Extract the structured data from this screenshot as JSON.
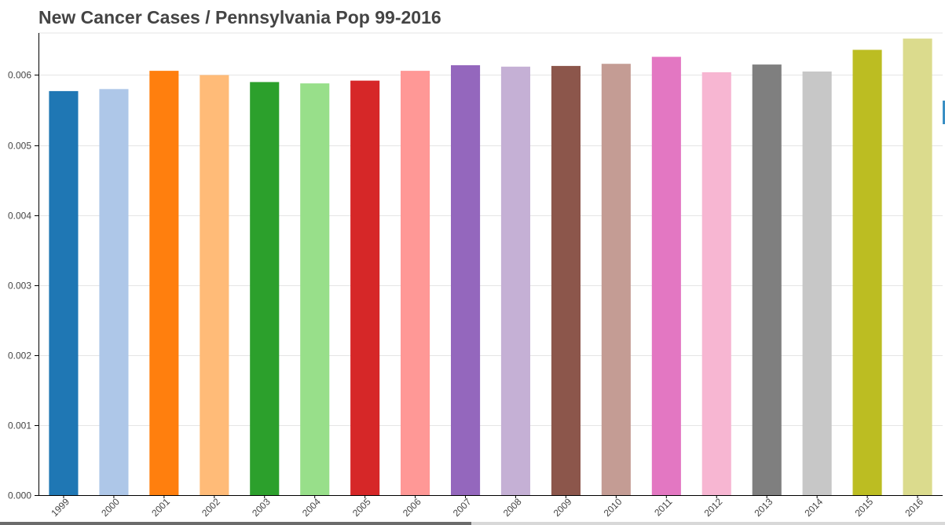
{
  "chart_data": {
    "type": "bar",
    "title": "New Cancer Cases / Pennsylvania Pop 99-2016",
    "xlabel": "",
    "ylabel": "",
    "categories": [
      "1999",
      "2000",
      "2001",
      "2002",
      "2003",
      "2004",
      "2005",
      "2006",
      "2007",
      "2008",
      "2009",
      "2010",
      "2011",
      "2012",
      "2013",
      "2014",
      "2015",
      "2016"
    ],
    "values": [
      0.00577,
      0.0058,
      0.00606,
      0.006,
      0.0059,
      0.00588,
      0.00592,
      0.00606,
      0.00614,
      0.00612,
      0.00613,
      0.00616,
      0.00626,
      0.00604,
      0.00615,
      0.00605,
      0.00636,
      0.00652
    ],
    "colors": [
      "#1f77b4",
      "#aec7e8",
      "#ff7f0e",
      "#ffbb78",
      "#2ca02c",
      "#98df8a",
      "#d62728",
      "#ff9896",
      "#9467bd",
      "#c5b0d5",
      "#8c564b",
      "#c49c94",
      "#e377c2",
      "#f7b6d2",
      "#7f7f7f",
      "#c7c7c7",
      "#bcbd22",
      "#dbdb8d"
    ],
    "ylim": [
      0,
      0.0066
    ],
    "yticks": [
      "0.000",
      "0.001",
      "0.002",
      "0.003",
      "0.004",
      "0.005",
      "0.006"
    ],
    "grid": true,
    "legend": "none"
  }
}
